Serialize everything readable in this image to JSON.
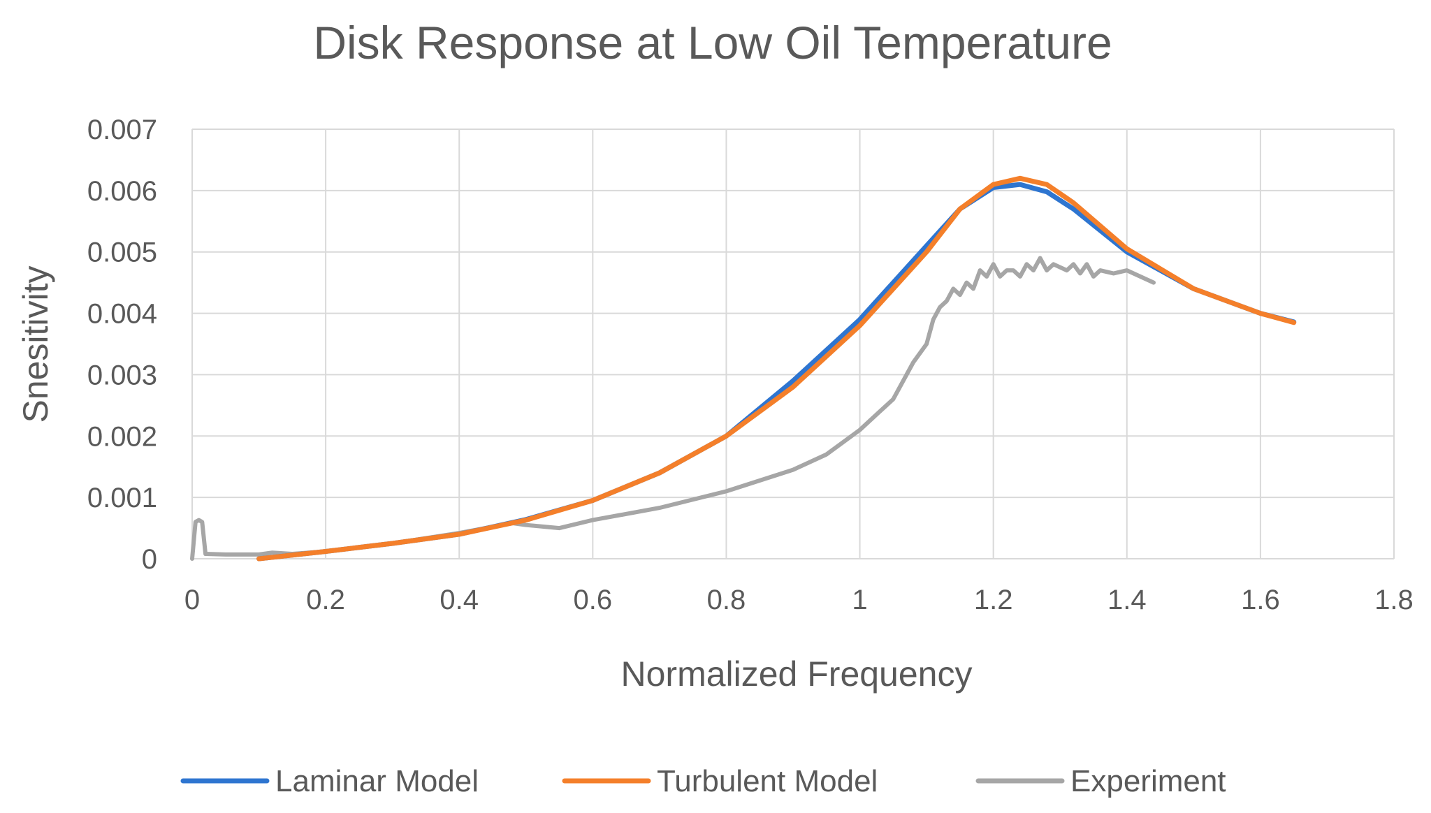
{
  "chart_data": {
    "type": "line",
    "title": "Disk Response at Low Oil Temperature",
    "xlabel": "Normalized Frequency",
    "ylabel": "Snesitivity",
    "xlim": [
      0,
      1.8
    ],
    "ylim": [
      0,
      0.007
    ],
    "x_ticks": [
      "0",
      "0.2",
      "0.4",
      "0.6",
      "0.8",
      "1",
      "1.2",
      "1.4",
      "1.6",
      "1.8"
    ],
    "y_ticks": [
      "0",
      "0.001",
      "0.002",
      "0.003",
      "0.004",
      "0.005",
      "0.006",
      "0.007"
    ],
    "grid": true,
    "legend_position": "bottom",
    "series": [
      {
        "name": "Laminar Model",
        "color": "#2E75D0",
        "x": [
          0.1,
          0.2,
          0.3,
          0.4,
          0.5,
          0.6,
          0.7,
          0.8,
          0.9,
          1.0,
          1.1,
          1.15,
          1.2,
          1.24,
          1.28,
          1.32,
          1.4,
          1.5,
          1.6,
          1.65
        ],
        "y": [
          0.0,
          0.00012,
          0.00025,
          0.0004,
          0.00064,
          0.00095,
          0.0014,
          0.002,
          0.0029,
          0.0039,
          0.0051,
          0.0057,
          0.00605,
          0.0061,
          0.00598,
          0.0057,
          0.005,
          0.0044,
          0.004,
          0.00386
        ]
      },
      {
        "name": "Turbulent Model",
        "color": "#F47F2A",
        "x": [
          0.1,
          0.2,
          0.3,
          0.4,
          0.5,
          0.6,
          0.7,
          0.8,
          0.9,
          1.0,
          1.1,
          1.15,
          1.2,
          1.24,
          1.28,
          1.32,
          1.4,
          1.5,
          1.6,
          1.65
        ],
        "y": [
          0.0,
          0.00012,
          0.00025,
          0.0004,
          0.00063,
          0.00095,
          0.0014,
          0.002,
          0.0028,
          0.0038,
          0.005,
          0.0057,
          0.0061,
          0.0062,
          0.0061,
          0.0058,
          0.00505,
          0.0044,
          0.004,
          0.00385
        ]
      },
      {
        "name": "Experiment",
        "color": "#A6A6A6",
        "x": [
          0.0,
          0.005,
          0.01,
          0.015,
          0.02,
          0.05,
          0.1,
          0.12,
          0.15,
          0.2,
          0.3,
          0.4,
          0.48,
          0.5,
          0.55,
          0.6,
          0.7,
          0.8,
          0.9,
          0.95,
          1.0,
          1.03,
          1.05,
          1.08,
          1.1,
          1.11,
          1.12,
          1.13,
          1.14,
          1.15,
          1.16,
          1.17,
          1.18,
          1.19,
          1.2,
          1.21,
          1.22,
          1.23,
          1.24,
          1.25,
          1.26,
          1.27,
          1.28,
          1.29,
          1.3,
          1.31,
          1.32,
          1.33,
          1.34,
          1.35,
          1.36,
          1.38,
          1.4,
          1.42,
          1.44
        ],
        "y": [
          0.0,
          0.0006,
          0.00063,
          0.0006,
          8e-05,
          7e-05,
          7e-05,
          0.0001,
          8e-05,
          0.00012,
          0.00025,
          0.00042,
          0.00058,
          0.00055,
          0.0005,
          0.00063,
          0.00083,
          0.0011,
          0.00145,
          0.0017,
          0.0021,
          0.0024,
          0.0026,
          0.0032,
          0.0035,
          0.0039,
          0.0041,
          0.0042,
          0.0044,
          0.0043,
          0.0045,
          0.0044,
          0.0047,
          0.0046,
          0.0048,
          0.0046,
          0.0047,
          0.0047,
          0.0046,
          0.0048,
          0.0047,
          0.0049,
          0.0047,
          0.0048,
          0.00475,
          0.0047,
          0.0048,
          0.00465,
          0.0048,
          0.0046,
          0.0047,
          0.00465,
          0.0047,
          0.0046,
          0.0045
        ]
      }
    ]
  }
}
